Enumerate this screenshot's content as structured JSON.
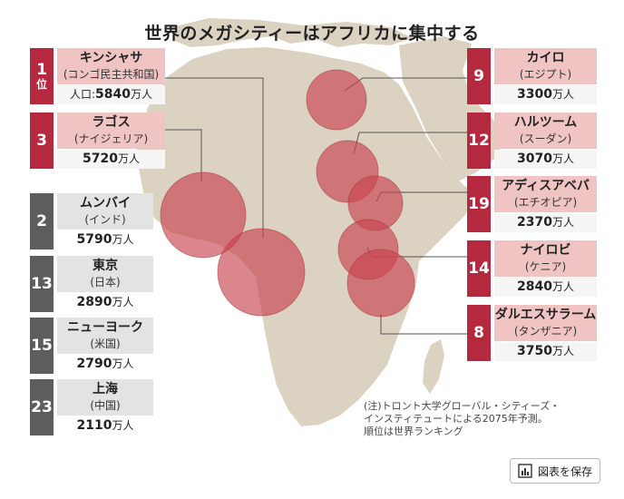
{
  "title": "世界のメガシティーはアフリカに集中する",
  "units": {
    "population_suffix": "万人",
    "population_prefix": "人口:",
    "rank_suffix": "位"
  },
  "colors": {
    "africa_rank": "#b5293f",
    "africa_label": "#f1c4c4",
    "other_rank": "#5d5d5d",
    "other_label": "#e3e3e3",
    "circle": "#c8434e",
    "land": "#dcd2c2"
  },
  "africa_cities": [
    {
      "rank": "1",
      "name": "キンシャサ",
      "country": "(コンゴ民主共和国)",
      "population": "5840"
    },
    {
      "rank": "3",
      "name": "ラゴス",
      "country": "(ナイジェリア)",
      "population": "5720"
    },
    {
      "rank": "9",
      "name": "カイロ",
      "country": "(エジプト)",
      "population": "3300"
    },
    {
      "rank": "12",
      "name": "ハルツーム",
      "country": "(スーダン)",
      "population": "3070"
    },
    {
      "rank": "19",
      "name": "アディスアベバ",
      "country": "(エチオピア)",
      "population": "2370"
    },
    {
      "rank": "14",
      "name": "ナイロビ",
      "country": "(ケニア)",
      "population": "2840"
    },
    {
      "rank": "8",
      "name": "ダルエスサラーム",
      "country": "(タンザニア)",
      "population": "3750"
    }
  ],
  "other_cities": [
    {
      "rank": "2",
      "name": "ムンバイ",
      "country": "(インド)",
      "population": "5790"
    },
    {
      "rank": "13",
      "name": "東京",
      "country": "(日本)",
      "population": "2890"
    },
    {
      "rank": "15",
      "name": "ニューヨーク",
      "country": "(米国)",
      "population": "2790"
    },
    {
      "rank": "23",
      "name": "上海",
      "country": "(中国)",
      "population": "2110"
    }
  ],
  "note": {
    "line1": "(注)トロント大学グローバル・シティーズ・",
    "line2": "インスティテュートによる2075年予測。",
    "line3": "順位は世界ランキング"
  },
  "save_button": {
    "label": "図表を保存",
    "icon": "chart-icon"
  }
}
